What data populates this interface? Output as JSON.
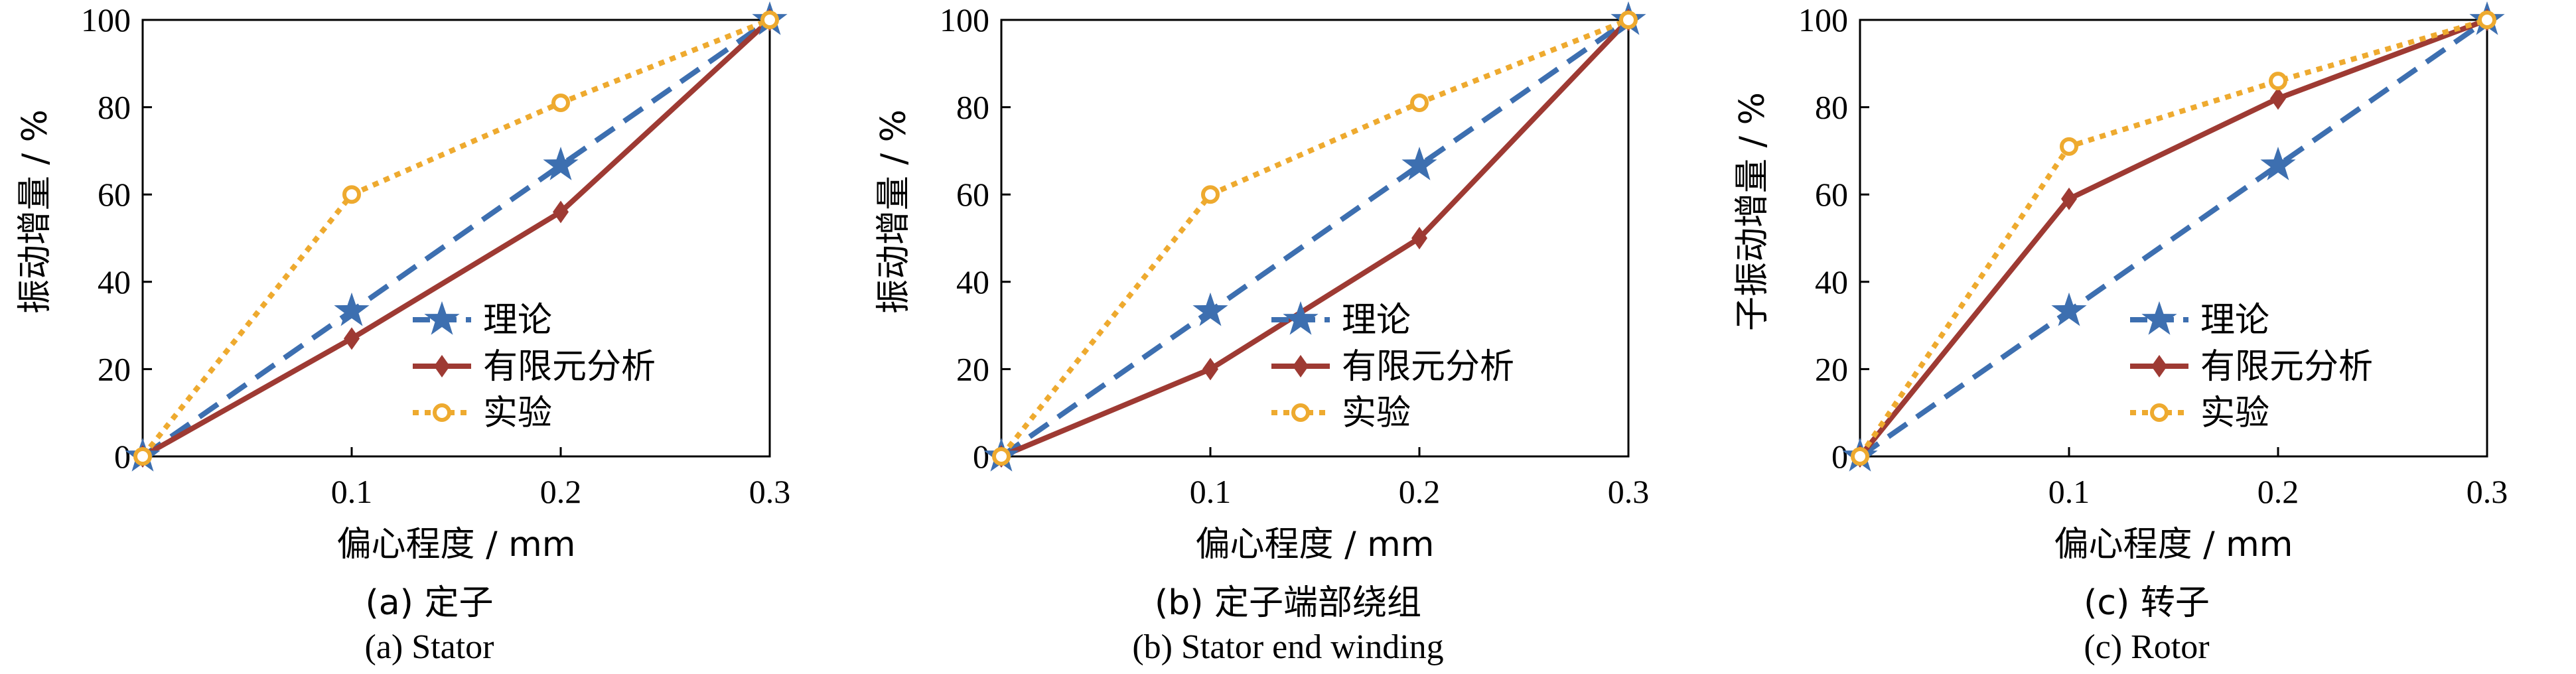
{
  "chart_data": [
    {
      "type": "line",
      "x": [
        0,
        0.1,
        0.2,
        0.3
      ],
      "xticks": [
        "0.1",
        "0.2",
        "0.3"
      ],
      "xlim": [
        0,
        0.3
      ],
      "ylim": [
        0,
        100
      ],
      "yticks": [
        "0",
        "20",
        "40",
        "60",
        "80",
        "100"
      ],
      "xlabel": "偏心程度 / mm",
      "ylabel": "振动增量 / %",
      "legend_position": "bottom-right",
      "caption_cn": "(a)  定子",
      "caption_en": "(a)  Stator",
      "series": [
        {
          "name": "理论",
          "values": [
            0,
            33.3,
            66.7,
            100
          ],
          "color": "#3d6fb0",
          "style": "dashed",
          "marker": "star"
        },
        {
          "name": "有限元分析",
          "values": [
            0,
            27,
            56,
            100
          ],
          "color": "#9e3a33",
          "style": "solid",
          "marker": "diamond"
        },
        {
          "name": "实验",
          "values": [
            0,
            60,
            81,
            100
          ],
          "color": "#eeaa2f",
          "style": "dotted",
          "marker": "circle"
        }
      ]
    },
    {
      "type": "line",
      "x": [
        0,
        0.1,
        0.2,
        0.3
      ],
      "xticks": [
        "0.1",
        "0.2",
        "0.3"
      ],
      "xlim": [
        0,
        0.3
      ],
      "ylim": [
        0,
        100
      ],
      "yticks": [
        "0",
        "20",
        "40",
        "60",
        "80",
        "100"
      ],
      "xlabel": "偏心程度 / mm",
      "ylabel": "振动增量 / %",
      "legend_position": "bottom-right",
      "caption_cn": "(b)  定子端部绕组",
      "caption_en": "(b)  Stator end winding",
      "series": [
        {
          "name": "理论",
          "values": [
            0,
            33.3,
            66.7,
            100
          ],
          "color": "#3d6fb0",
          "style": "dashed",
          "marker": "star"
        },
        {
          "name": "有限元分析",
          "values": [
            0,
            20,
            50,
            100
          ],
          "color": "#9e3a33",
          "style": "solid",
          "marker": "diamond"
        },
        {
          "name": "实验",
          "values": [
            0,
            60,
            81,
            100
          ],
          "color": "#eeaa2f",
          "style": "dotted",
          "marker": "circle"
        }
      ]
    },
    {
      "type": "line",
      "x": [
        0,
        0.1,
        0.2,
        0.3
      ],
      "xticks": [
        "0.1",
        "0.2",
        "0.3"
      ],
      "xlim": [
        0,
        0.3
      ],
      "ylim": [
        0,
        100
      ],
      "yticks": [
        "0",
        "20",
        "40",
        "60",
        "80",
        "100"
      ],
      "xlabel": "偏心程度 / mm",
      "ylabel": "子振动增量 / %",
      "legend_position": "bottom-right",
      "caption_cn": "(c)  转子",
      "caption_en": "(c)  Rotor",
      "series": [
        {
          "name": "理论",
          "values": [
            0,
            33.3,
            66.7,
            100
          ],
          "color": "#3d6fb0",
          "style": "dashed",
          "marker": "star"
        },
        {
          "name": "有限元分析",
          "values": [
            0,
            59,
            82,
            100
          ],
          "color": "#9e3a33",
          "style": "solid",
          "marker": "diamond"
        },
        {
          "name": "实验",
          "values": [
            0,
            71,
            86,
            100
          ],
          "color": "#eeaa2f",
          "style": "dotted",
          "marker": "circle"
        }
      ]
    }
  ]
}
